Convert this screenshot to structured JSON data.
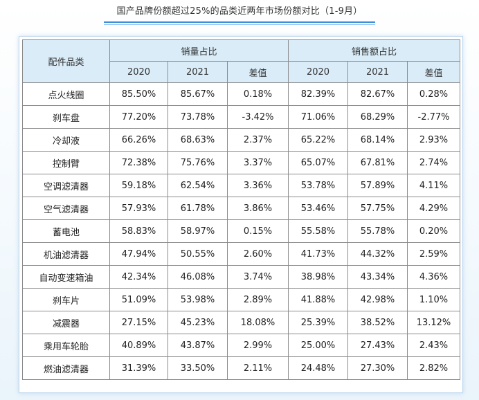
{
  "title": "国产品牌份额超过25%的品类近两年市场份额对比（1-9月）",
  "header": {
    "category": "配件品类",
    "group1": "销量占比",
    "group2": "销售额占比",
    "sub": [
      "2020",
      "2021",
      "差值",
      "2020",
      "2021",
      "差值"
    ]
  },
  "colors": {
    "header_bg": "#d9ecf8",
    "highlight_red": "#e02020",
    "title_underline": "#3a8fd6"
  },
  "chart_data": {
    "type": "table",
    "title": "国产品牌份额超过25%的品类近两年市场份额对比（1-9月）",
    "columns": [
      "配件品类",
      "销量占比 2020",
      "销量占比 2021",
      "销量占比 差值",
      "销售额占比 2020",
      "销售额占比 2021",
      "销售额占比 差值"
    ],
    "rows": [
      {
        "category": "点火线圈",
        "vol_2020": "85.50%",
        "vol_2021": "85.67%",
        "vol_diff": "0.18%",
        "rev_2020": "82.39%",
        "rev_2021": "82.67%",
        "rev_diff": "0.28%",
        "rev_2021_red": true,
        "rev_diff_red": false
      },
      {
        "category": "刹车盘",
        "vol_2020": "77.20%",
        "vol_2021": "73.78%",
        "vol_diff": "-3.42%",
        "rev_2020": "71.06%",
        "rev_2021": "68.29%",
        "rev_diff": "-2.77%",
        "rev_2021_red": true,
        "rev_diff_red": false
      },
      {
        "category": "冷却液",
        "vol_2020": "66.26%",
        "vol_2021": "68.63%",
        "vol_diff": "2.37%",
        "rev_2020": "65.22%",
        "rev_2021": "68.14%",
        "rev_diff": "2.93%",
        "rev_2021_red": true,
        "rev_diff_red": false
      },
      {
        "category": "控制臂",
        "vol_2020": "72.38%",
        "vol_2021": "75.76%",
        "vol_diff": "3.37%",
        "rev_2020": "65.07%",
        "rev_2021": "67.81%",
        "rev_diff": "2.74%",
        "rev_2021_red": true,
        "rev_diff_red": false
      },
      {
        "category": "空调滤清器",
        "vol_2020": "59.18%",
        "vol_2021": "62.54%",
        "vol_diff": "3.36%",
        "rev_2020": "53.78%",
        "rev_2021": "57.89%",
        "rev_diff": "4.11%",
        "rev_2021_red": true,
        "rev_diff_red": false
      },
      {
        "category": "空气滤清器",
        "vol_2020": "57.93%",
        "vol_2021": "61.78%",
        "vol_diff": "3.86%",
        "rev_2020": "53.46%",
        "rev_2021": "57.75%",
        "rev_diff": "4.29%",
        "rev_2021_red": true,
        "rev_diff_red": false
      },
      {
        "category": "蓄电池",
        "vol_2020": "58.83%",
        "vol_2021": "58.97%",
        "vol_diff": "0.15%",
        "rev_2020": "55.58%",
        "rev_2021": "55.78%",
        "rev_diff": "0.20%",
        "rev_2021_red": true,
        "rev_diff_red": false
      },
      {
        "category": "机油滤清器",
        "vol_2020": "47.94%",
        "vol_2021": "50.55%",
        "vol_diff": "2.60%",
        "rev_2020": "41.73%",
        "rev_2021": "44.32%",
        "rev_diff": "2.59%",
        "rev_2021_red": false,
        "rev_diff_red": false
      },
      {
        "category": "自动变速箱油",
        "vol_2020": "42.34%",
        "vol_2021": "46.08%",
        "vol_diff": "3.74%",
        "rev_2020": "38.98%",
        "rev_2021": "43.34%",
        "rev_diff": "4.36%",
        "rev_2021_red": false,
        "rev_diff_red": false
      },
      {
        "category": "刹车片",
        "vol_2020": "51.09%",
        "vol_2021": "53.98%",
        "vol_diff": "2.89%",
        "rev_2020": "41.88%",
        "rev_2021": "42.98%",
        "rev_diff": "1.10%",
        "rev_2021_red": false,
        "rev_diff_red": false
      },
      {
        "category": "减震器",
        "vol_2020": "27.15%",
        "vol_2021": "45.23%",
        "vol_diff": "18.08%",
        "rev_2020": "25.39%",
        "rev_2021": "38.52%",
        "rev_diff": "13.12%",
        "rev_2021_red": false,
        "rev_diff_red": true
      },
      {
        "category": "乘用车轮胎",
        "vol_2020": "40.89%",
        "vol_2021": "43.87%",
        "vol_diff": "2.99%",
        "rev_2020": "25.00%",
        "rev_2021": "27.43%",
        "rev_diff": "2.43%",
        "rev_2021_red": false,
        "rev_diff_red": false
      },
      {
        "category": "燃油滤清器",
        "vol_2020": "31.39%",
        "vol_2021": "33.50%",
        "vol_diff": "2.11%",
        "rev_2020": "24.48%",
        "rev_2021": "27.30%",
        "rev_diff": "2.82%",
        "rev_2021_red": false,
        "rev_diff_red": false
      }
    ]
  }
}
